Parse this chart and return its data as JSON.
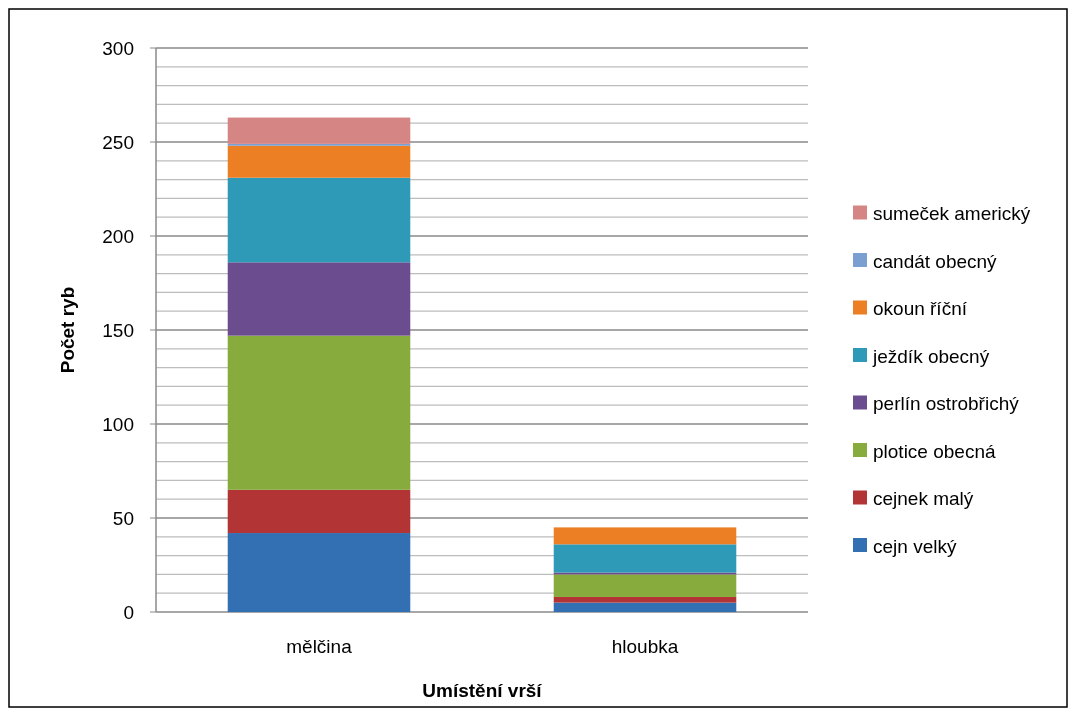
{
  "chart_data": {
    "type": "bar",
    "stacked": true,
    "xlabel": "Umístění vrší",
    "ylabel": "Počet ryb",
    "categories": [
      "mělčina",
      "hloubka"
    ],
    "series": [
      {
        "name": "cejn velký",
        "color": "#336fb3",
        "values": [
          42,
          5
        ]
      },
      {
        "name": "cejnek malý",
        "color": "#b33434",
        "values": [
          23,
          3
        ]
      },
      {
        "name": "plotice obecná",
        "color": "#87ab3c",
        "values": [
          82,
          12
        ]
      },
      {
        "name": "perlín ostrobřichý",
        "color": "#6b4c8f",
        "values": [
          39,
          1
        ]
      },
      {
        "name": "ježdík obecný",
        "color": "#2e9ab8",
        "values": [
          45,
          15
        ]
      },
      {
        "name": "okoun říční",
        "color": "#ec7f24",
        "values": [
          17,
          9
        ]
      },
      {
        "name": "candát obecný",
        "color": "#7b9fd0",
        "values": [
          1,
          0
        ]
      },
      {
        "name": "sumeček americký",
        "color": "#d68585",
        "values": [
          14,
          0
        ]
      }
    ],
    "ylim": [
      0,
      300
    ],
    "yticks": [
      0,
      {
        "value": 10,
        "label": null
      },
      {
        "value": 20,
        "label": null
      },
      {
        "value": 30,
        "label": null
      },
      {
        "value": 40,
        "label": null
      },
      50,
      {
        "value": 60,
        "label": null
      },
      {
        "value": 70,
        "label": null
      },
      {
        "value": 80,
        "label": null
      },
      {
        "value": 90,
        "label": null
      },
      100,
      {
        "value": 110,
        "label": null
      },
      {
        "value": 120,
        "label": null
      },
      {
        "value": 130,
        "label": null
      },
      {
        "value": 140,
        "label": null
      },
      150,
      {
        "value": 160,
        "label": null
      },
      {
        "value": 170,
        "label": null
      },
      {
        "value": 180,
        "label": null
      },
      {
        "value": 190,
        "label": null
      },
      200,
      {
        "value": 210,
        "label": null
      },
      {
        "value": 220,
        "label": null
      },
      {
        "value": 230,
        "label": null
      },
      {
        "value": 240,
        "label": null
      },
      250,
      {
        "value": 260,
        "label": null
      },
      {
        "value": 270,
        "label": null
      },
      {
        "value": 280,
        "label": null
      },
      {
        "value": 290,
        "label": null
      },
      300
    ],
    "grid": true,
    "legend": "right"
  }
}
